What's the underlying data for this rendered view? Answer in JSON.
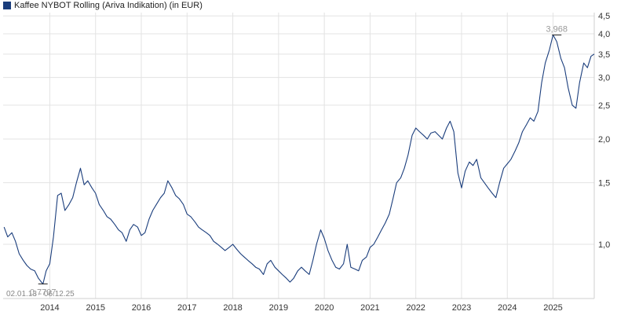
{
  "chart_data": {
    "type": "line",
    "title": "Kaffee NYBOT Rolling (Ariva Indikation) (in EUR)",
    "date_range": "02.01.13 - 06.12.25",
    "y_scale": "log",
    "ylim": [
      0.7,
      4.6
    ],
    "y_ticks": [
      "4,5",
      "4,0",
      "3,5",
      "3,0",
      "2,5",
      "2,0",
      "1,5",
      "1,0"
    ],
    "y_tick_values": [
      4.5,
      4.0,
      3.5,
      3.0,
      2.5,
      2.0,
      1.5,
      1.0
    ],
    "x_ticks": [
      "2014",
      "2015",
      "2016",
      "2017",
      "2018",
      "2019",
      "2020",
      "2021",
      "2022",
      "2023",
      "2024",
      "2025"
    ],
    "x_tick_values": [
      2014.0,
      2015.0,
      2016.0,
      2017.0,
      2018.0,
      2019.0,
      2020.0,
      2021.0,
      2022.0,
      2023.0,
      2024.0,
      2025.0
    ],
    "xlim": [
      2012.98,
      2025.9
    ],
    "grid": true,
    "color": "#1a3d7c",
    "annotations": {
      "max": {
        "label": "3,968",
        "x": 2025.08,
        "y": 3.968
      },
      "min": {
        "label": "0,7707",
        "x": 2013.85,
        "y": 0.7707
      }
    },
    "series": [
      {
        "x": [
          2013.0,
          2013.08,
          2013.17,
          2013.25,
          2013.33,
          2013.42,
          2013.5,
          2013.58,
          2013.67,
          2013.75,
          2013.85,
          2013.92,
          2014.0,
          2014.08,
          2014.17,
          2014.25,
          2014.33,
          2014.42,
          2014.5,
          2014.58,
          2014.67,
          2014.75,
          2014.83,
          2014.92,
          2015.0,
          2015.08,
          2015.17,
          2015.25,
          2015.33,
          2015.42,
          2015.5,
          2015.58,
          2015.67,
          2015.75,
          2015.83,
          2015.92,
          2016.0,
          2016.08,
          2016.17,
          2016.25,
          2016.33,
          2016.42,
          2016.5,
          2016.58,
          2016.67,
          2016.75,
          2016.83,
          2016.92,
          2017.0,
          2017.08,
          2017.17,
          2017.25,
          2017.33,
          2017.42,
          2017.5,
          2017.58,
          2017.67,
          2017.75,
          2017.83,
          2017.92,
          2018.0,
          2018.08,
          2018.17,
          2018.25,
          2018.33,
          2018.42,
          2018.5,
          2018.58,
          2018.67,
          2018.75,
          2018.83,
          2018.92,
          2019.0,
          2019.08,
          2019.17,
          2019.25,
          2019.33,
          2019.42,
          2019.5,
          2019.58,
          2019.67,
          2019.75,
          2019.83,
          2019.92,
          2020.0,
          2020.08,
          2020.17,
          2020.25,
          2020.33,
          2020.42,
          2020.5,
          2020.58,
          2020.67,
          2020.75,
          2020.83,
          2020.92,
          2021.0,
          2021.08,
          2021.17,
          2021.25,
          2021.33,
          2021.42,
          2021.5,
          2021.58,
          2021.67,
          2021.75,
          2021.83,
          2021.92,
          2022.0,
          2022.08,
          2022.17,
          2022.25,
          2022.33,
          2022.42,
          2022.5,
          2022.58,
          2022.67,
          2022.75,
          2022.83,
          2022.92,
          2023.0,
          2023.08,
          2023.17,
          2023.25,
          2023.33,
          2023.42,
          2023.5,
          2023.58,
          2023.67,
          2023.75,
          2023.83,
          2023.92,
          2024.0,
          2024.08,
          2024.17,
          2024.25,
          2024.33,
          2024.42,
          2024.5,
          2024.58,
          2024.67,
          2024.75,
          2024.83,
          2024.92,
          2025.0,
          2025.08,
          2025.17,
          2025.25,
          2025.33,
          2025.42,
          2025.5,
          2025.58,
          2025.67,
          2025.75,
          2025.83,
          2025.9
        ],
        "values": [
          1.12,
          1.05,
          1.08,
          1.02,
          0.94,
          0.9,
          0.87,
          0.85,
          0.84,
          0.8,
          0.77,
          0.84,
          0.88,
          1.05,
          1.38,
          1.4,
          1.25,
          1.3,
          1.36,
          1.5,
          1.65,
          1.48,
          1.52,
          1.45,
          1.4,
          1.3,
          1.25,
          1.2,
          1.18,
          1.14,
          1.1,
          1.08,
          1.02,
          1.1,
          1.14,
          1.12,
          1.06,
          1.08,
          1.18,
          1.25,
          1.3,
          1.36,
          1.4,
          1.52,
          1.45,
          1.38,
          1.35,
          1.3,
          1.22,
          1.2,
          1.16,
          1.12,
          1.1,
          1.08,
          1.06,
          1.02,
          1.0,
          0.98,
          0.96,
          0.98,
          1.0,
          0.97,
          0.94,
          0.92,
          0.9,
          0.88,
          0.86,
          0.85,
          0.82,
          0.88,
          0.9,
          0.86,
          0.84,
          0.82,
          0.8,
          0.78,
          0.8,
          0.84,
          0.86,
          0.84,
          0.82,
          0.9,
          1.0,
          1.1,
          1.04,
          0.96,
          0.9,
          0.86,
          0.85,
          0.88,
          1.0,
          0.86,
          0.85,
          0.84,
          0.9,
          0.92,
          0.98,
          1.0,
          1.05,
          1.1,
          1.15,
          1.22,
          1.35,
          1.5,
          1.55,
          1.65,
          1.8,
          2.05,
          2.15,
          2.1,
          2.05,
          2.0,
          2.08,
          2.1,
          2.05,
          2.0,
          2.15,
          2.25,
          2.1,
          1.6,
          1.45,
          1.62,
          1.72,
          1.68,
          1.75,
          1.55,
          1.5,
          1.45,
          1.4,
          1.36,
          1.5,
          1.65,
          1.7,
          1.75,
          1.85,
          1.95,
          2.1,
          2.2,
          2.3,
          2.25,
          2.4,
          2.9,
          3.3,
          3.6,
          3.97,
          3.8,
          3.4,
          3.2,
          2.8,
          2.5,
          2.45,
          2.9,
          3.3,
          3.2,
          3.45,
          3.5
        ]
      }
    ]
  }
}
